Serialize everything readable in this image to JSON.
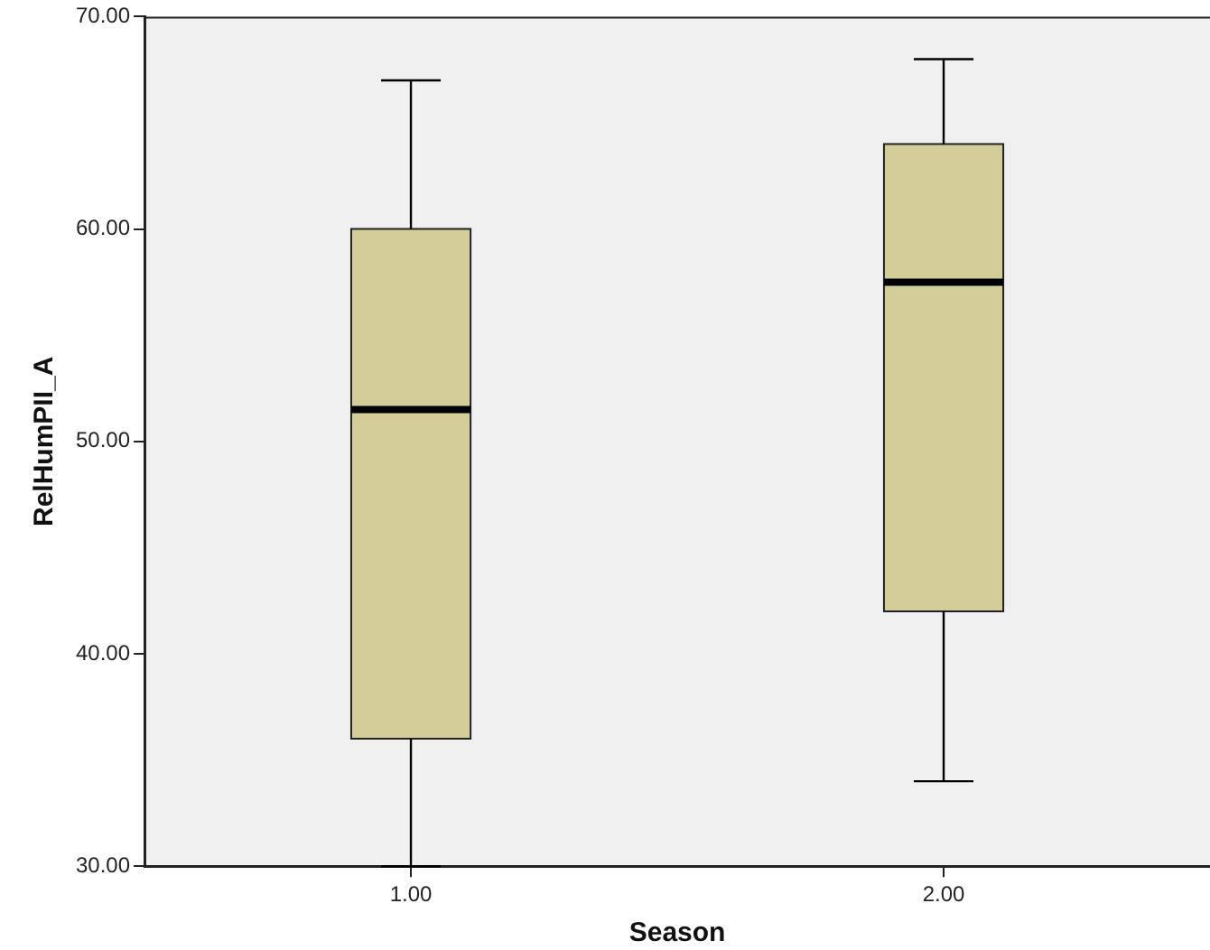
{
  "chart_data": {
    "type": "box",
    "xlabel": "Season",
    "ylabel": "RelHumPII_A",
    "categories": [
      "1.00",
      "2.00"
    ],
    "color": "#d3ce97",
    "boxes": [
      {
        "low": 30,
        "q1": 36,
        "median": 51.5,
        "q3": 60,
        "high": 67
      },
      {
        "low": 34,
        "q1": 42,
        "median": 57.5,
        "q3": 64,
        "high": 68
      }
    ],
    "ylim": [
      30,
      70
    ],
    "yticks": [
      {
        "value": 30,
        "label": "30.00"
      },
      {
        "value": 40,
        "label": "40.00"
      },
      {
        "value": 50,
        "label": "50.00"
      },
      {
        "value": 60,
        "label": "60.00"
      },
      {
        "value": 70,
        "label": "70.00"
      }
    ],
    "grid": false,
    "legend": false
  }
}
